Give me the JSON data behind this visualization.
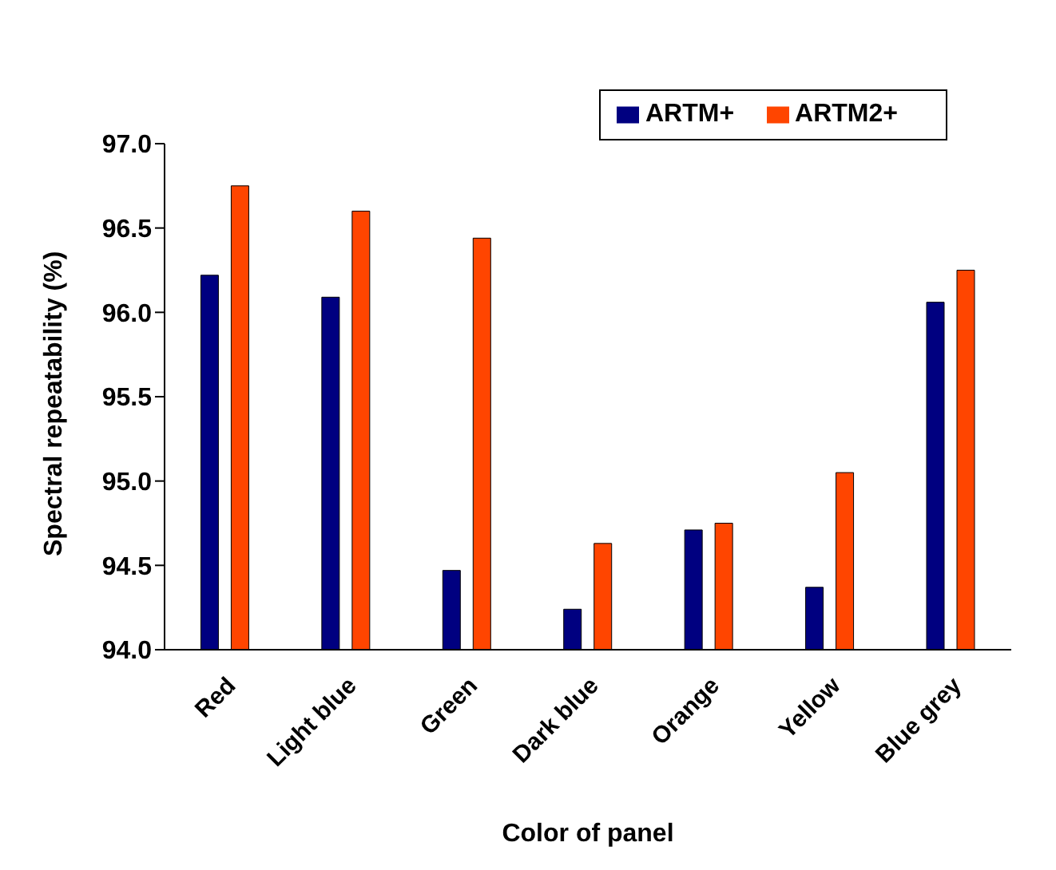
{
  "chart_data": {
    "type": "bar",
    "xlabel": "Color of panel",
    "ylabel": "Spectral repeatability (%)",
    "categories": [
      "Red",
      "Light blue",
      "Green",
      "Dark blue",
      "Orange",
      "Yellow",
      "Blue grey"
    ],
    "series": [
      {
        "name": "ARTM+",
        "color": "#000080",
        "values": [
          96.22,
          96.09,
          94.47,
          94.24,
          94.71,
          94.37,
          96.06
        ]
      },
      {
        "name": "ARTM2+",
        "color": "#ff4500",
        "values": [
          96.75,
          96.6,
          96.44,
          94.63,
          94.75,
          95.05,
          96.25
        ]
      }
    ],
    "ylim": [
      94,
      97
    ],
    "yticks": [
      {
        "value": 94,
        "label": "94.0"
      },
      {
        "value": 94.5,
        "label": "94.5"
      },
      {
        "value": 95,
        "label": "95.0"
      },
      {
        "value": 95.5,
        "label": "95.5"
      },
      {
        "value": 96,
        "label": "96.0"
      },
      {
        "value": 96.5,
        "label": "96.5"
      },
      {
        "value": 97,
        "label": "97.0"
      }
    ],
    "legend": "top right",
    "grid": false
  }
}
